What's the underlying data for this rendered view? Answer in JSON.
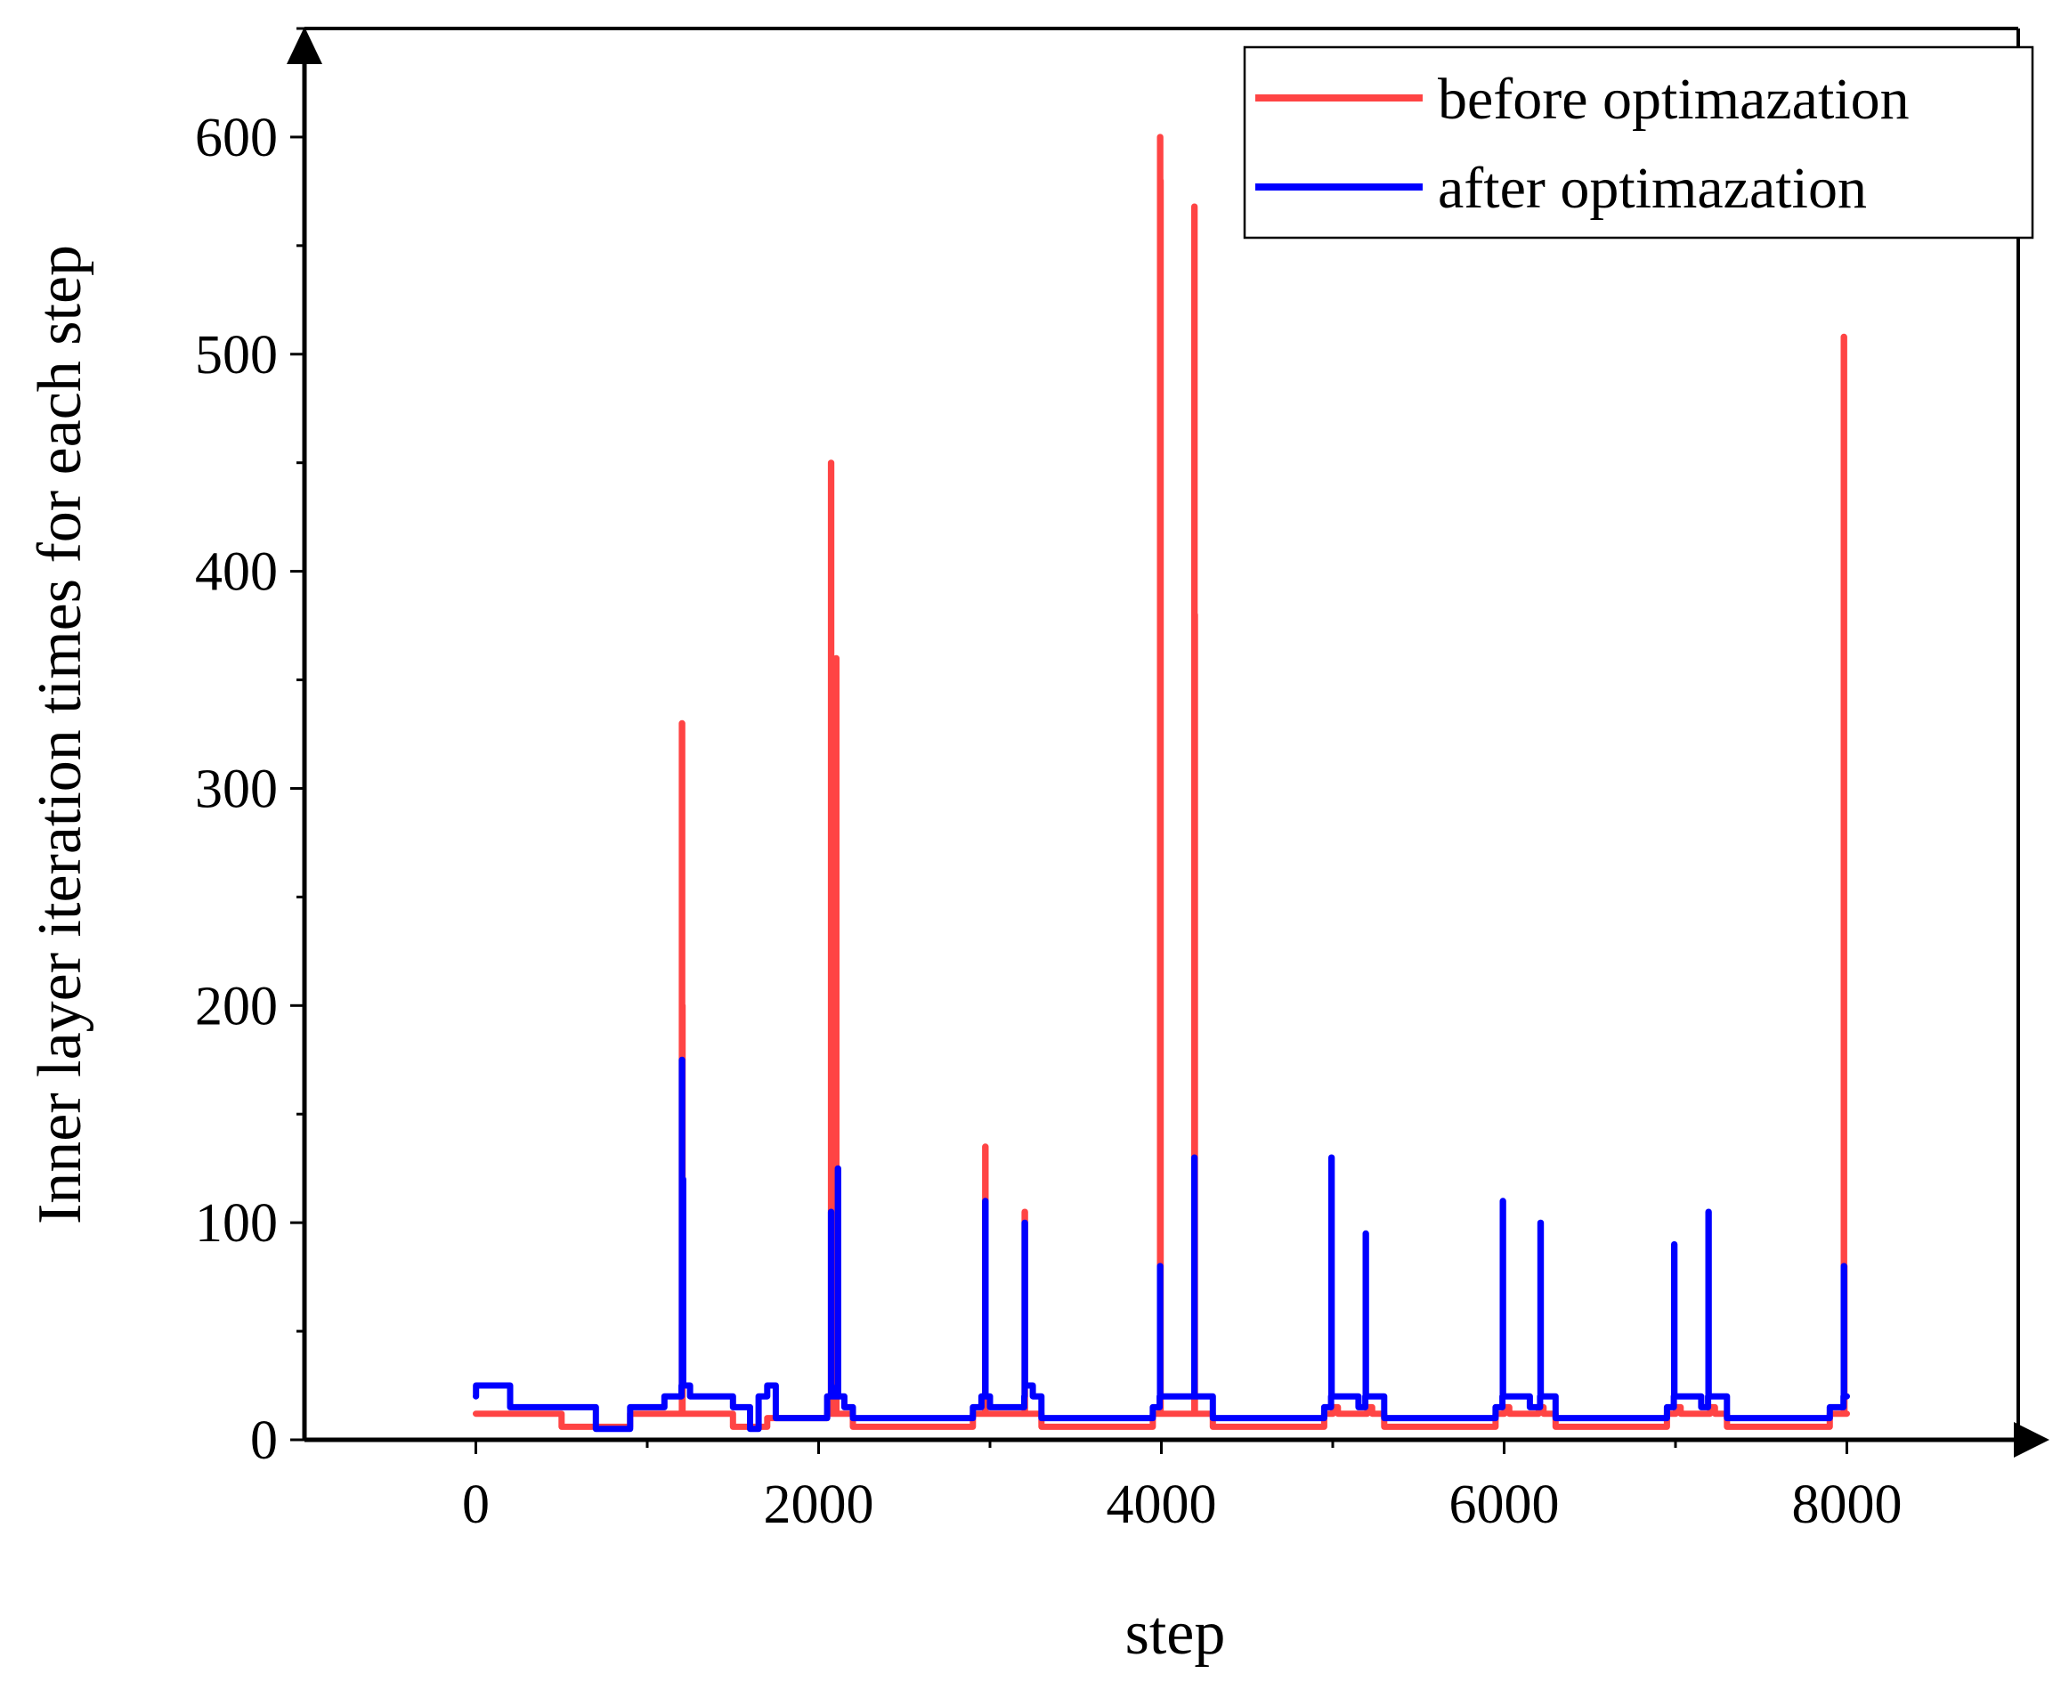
{
  "chart_data": {
    "type": "line",
    "title": "",
    "xlabel": "step",
    "ylabel": "Inner layer iteration times for each step",
    "xlim": [
      -1000,
      9000
    ],
    "ylim": [
      0,
      650
    ],
    "xticks": [
      0,
      2000,
      4000,
      6000,
      8000
    ],
    "xtick_labels": [
      "0",
      "2000",
      "4000",
      "6000",
      "8000"
    ],
    "yticks": [
      0,
      100,
      200,
      300,
      400,
      500,
      600
    ],
    "ytick_labels": [
      "0",
      "100",
      "200",
      "300",
      "400",
      "500",
      "600"
    ],
    "grid": false,
    "legend_position": "top-right",
    "series": [
      {
        "name": "before optimazation",
        "color": "#ff4444",
        "x": [
          0,
          200,
          500,
          700,
          900,
          1000,
          1150,
          1200,
          1202,
          1204,
          1206,
          1230,
          1400,
          1500,
          1600,
          1700,
          1950,
          2050,
          2070,
          2072,
          2074,
          2076,
          2080,
          2100,
          2102,
          2104,
          2110,
          2200,
          2500,
          2800,
          2900,
          2970,
          2972,
          2974,
          3000,
          3150,
          3200,
          3202,
          3204,
          3230,
          3300,
          3500,
          3700,
          3950,
          3990,
          3992,
          3994,
          3996,
          4030,
          4150,
          4190,
          4192,
          4194,
          4196,
          4230,
          4300,
          4500,
          4800,
          4950,
          5000,
          5002,
          5030,
          5150,
          5200,
          5202,
          5230,
          5300,
          5500,
          5700,
          5950,
          6000,
          6002,
          6030,
          6150,
          6200,
          6202,
          6230,
          6300,
          6500,
          6700,
          6950,
          7000,
          7002,
          7030,
          7150,
          7200,
          7202,
          7230,
          7300,
          7500,
          7700,
          7900,
          7980,
          7982,
          7984,
          7986,
          8000
        ],
        "values": [
          12,
          12,
          6,
          6,
          12,
          12,
          12,
          12,
          330,
          200,
          12,
          12,
          12,
          6,
          6,
          10,
          10,
          12,
          12,
          450,
          100,
          360,
          12,
          12,
          360,
          12,
          12,
          6,
          6,
          6,
          12,
          12,
          135,
          12,
          12,
          12,
          12,
          105,
          12,
          12,
          6,
          6,
          6,
          12,
          12,
          600,
          580,
          12,
          12,
          12,
          12,
          568,
          380,
          12,
          12,
          6,
          6,
          6,
          12,
          12,
          15,
          12,
          12,
          12,
          15,
          12,
          6,
          6,
          6,
          12,
          12,
          15,
          12,
          12,
          12,
          15,
          12,
          6,
          6,
          6,
          12,
          12,
          15,
          12,
          12,
          12,
          15,
          12,
          6,
          6,
          6,
          12,
          12,
          508,
          80,
          12,
          12
        ]
      },
      {
        "name": "after optimazation",
        "color": "#0000ff",
        "x": [
          0,
          1,
          200,
          500,
          700,
          900,
          1100,
          1180,
          1200,
          1202,
          1204,
          1210,
          1250,
          1500,
          1600,
          1650,
          1700,
          1750,
          2000,
          2050,
          2070,
          2072,
          2074,
          2090,
          2110,
          2112,
          2114,
          2150,
          2200,
          2300,
          2500,
          2800,
          2900,
          2950,
          2970,
          2972,
          2974,
          3000,
          3150,
          3200,
          3202,
          3204,
          3250,
          3300,
          3500,
          3700,
          3950,
          3990,
          3992,
          3994,
          4020,
          4150,
          4190,
          4192,
          4194,
          4230,
          4300,
          4500,
          4800,
          4950,
          4990,
          4992,
          4994,
          5030,
          5150,
          5190,
          5192,
          5194,
          5230,
          5300,
          5500,
          5700,
          5950,
          5990,
          5992,
          5994,
          6030,
          6150,
          6210,
          6212,
          6214,
          6250,
          6300,
          6500,
          6700,
          6950,
          6990,
          6992,
          6994,
          7030,
          7150,
          7190,
          7192,
          7194,
          7230,
          7300,
          7500,
          7700,
          7900,
          7980,
          7982,
          7984,
          8000
        ],
        "values": [
          20,
          25,
          15,
          15,
          5,
          15,
          20,
          20,
          25,
          175,
          120,
          25,
          20,
          15,
          5,
          20,
          25,
          10,
          10,
          20,
          20,
          105,
          20,
          20,
          25,
          125,
          20,
          15,
          10,
          10,
          10,
          10,
          15,
          20,
          20,
          110,
          20,
          15,
          15,
          20,
          100,
          25,
          20,
          10,
          10,
          10,
          15,
          20,
          80,
          20,
          20,
          20,
          20,
          130,
          20,
          20,
          10,
          10,
          10,
          15,
          20,
          130,
          20,
          20,
          15,
          20,
          95,
          20,
          20,
          10,
          10,
          10,
          15,
          20,
          110,
          20,
          20,
          15,
          20,
          100,
          20,
          20,
          10,
          10,
          10,
          15,
          20,
          90,
          20,
          20,
          15,
          20,
          105,
          20,
          20,
          10,
          10,
          10,
          15,
          20,
          80,
          20,
          20
        ]
      }
    ]
  }
}
